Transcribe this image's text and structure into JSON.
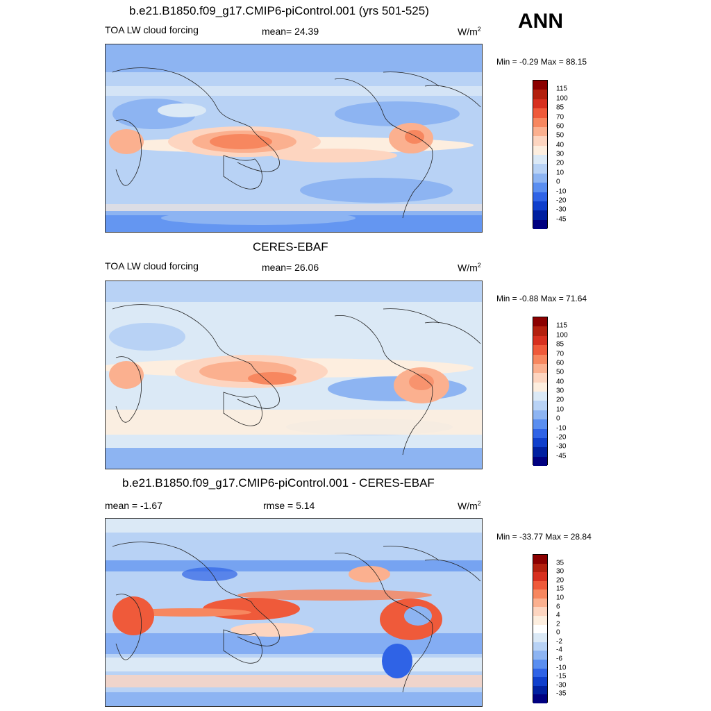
{
  "season": "ANN",
  "panels": [
    {
      "title": "b.e21.B1850.f09_g17.CMIP6-piControl.001 (yrs 501-525)",
      "left_label": "TOA LW cloud forcing",
      "center_label": "mean=  24.39",
      "unit": "W/m",
      "unit_sup": "2",
      "minmax": "Min =  -0.29 Max =  88.15",
      "colorbar_labels": [
        "115",
        "100",
        "85",
        "70",
        "60",
        "50",
        "40",
        "30",
        "20",
        "10",
        "0",
        "-10",
        "-20",
        "-30",
        "-45"
      ],
      "colors": [
        "#8b0000",
        "#b3200e",
        "#d7301f",
        "#ef5a3a",
        "#f7875f",
        "#fbb08f",
        "#fdd5c0",
        "#fdeedf",
        "#dbe9f6",
        "#b8d2f5",
        "#8db4f2",
        "#5a8ef0",
        "#2f63e6",
        "#0f3fcc",
        "#0020a0",
        "#000080"
      ]
    },
    {
      "title": "CERES-EBAF",
      "left_label": "TOA LW cloud forcing",
      "center_label": "mean=  26.06",
      "unit": "W/m",
      "unit_sup": "2",
      "minmax": "Min =  -0.88 Max =  71.64",
      "colorbar_labels": [
        "115",
        "100",
        "85",
        "70",
        "60",
        "50",
        "40",
        "30",
        "20",
        "10",
        "0",
        "-10",
        "-20",
        "-30",
        "-45"
      ],
      "colors": [
        "#8b0000",
        "#b3200e",
        "#d7301f",
        "#ef5a3a",
        "#f7875f",
        "#fbb08f",
        "#fdd5c0",
        "#fdeedf",
        "#dbe9f6",
        "#b8d2f5",
        "#8db4f2",
        "#5a8ef0",
        "#2f63e6",
        "#0f3fcc",
        "#0020a0",
        "#000080"
      ]
    },
    {
      "title": "b.e21.B1850.f09_g17.CMIP6-piControl.001 - CERES-EBAF",
      "left_label": "mean =  -1.67",
      "center_label": "rmse =   5.14",
      "unit": "W/m",
      "unit_sup": "2",
      "minmax": "Min = -33.77 Max =  28.84",
      "colorbar_labels": [
        "35",
        "30",
        "20",
        "15",
        "10",
        "6",
        "4",
        "2",
        "0",
        "-2",
        "-4",
        "-6",
        "-10",
        "-15",
        "-30",
        "-35"
      ],
      "colors": [
        "#8b0000",
        "#b3200e",
        "#d7301f",
        "#ef5a3a",
        "#f7875f",
        "#fbb08f",
        "#fdd5c0",
        "#fdeedf",
        "#ffffff",
        "#dbe9f6",
        "#b8d2f5",
        "#8db4f2",
        "#5a8ef0",
        "#2f63e6",
        "#0f3fcc",
        "#0020a0",
        "#000080"
      ]
    }
  ]
}
